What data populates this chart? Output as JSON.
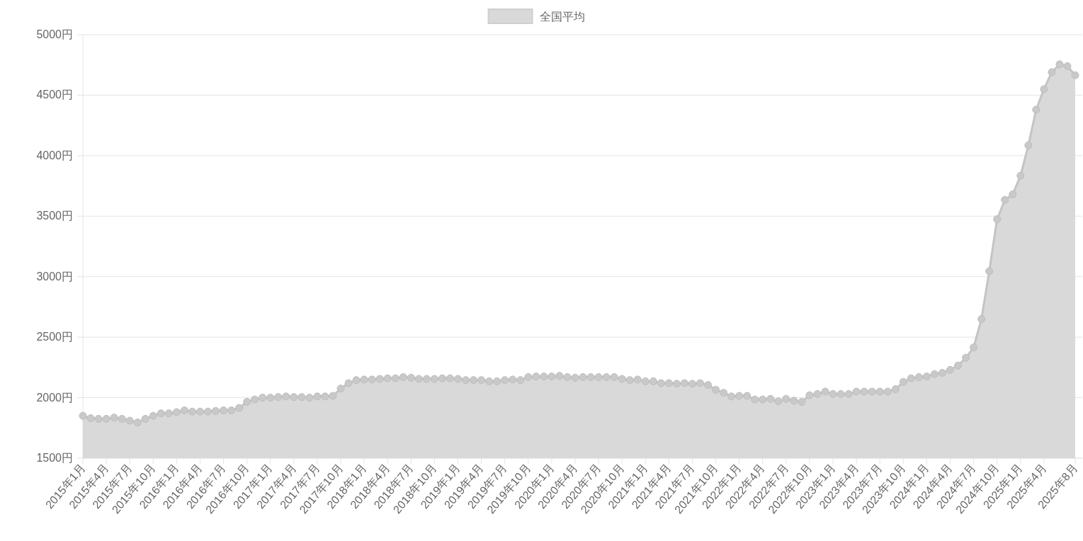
{
  "chart_data": {
    "type": "area",
    "legend": "top",
    "grid": "y",
    "marker": "circle",
    "categories": [
      "2015年1月",
      null,
      null,
      "2015年4月",
      null,
      null,
      "2015年7月",
      null,
      null,
      "2015年10月",
      null,
      null,
      "2016年1月",
      null,
      null,
      "2016年4月",
      null,
      null,
      "2016年7月",
      null,
      null,
      "2016年10月",
      null,
      null,
      "2017年1月",
      null,
      null,
      "2017年4月",
      null,
      null,
      "2017年7月",
      null,
      null,
      "2017年10月",
      null,
      null,
      "2018年1月",
      null,
      null,
      "2018年4月",
      null,
      null,
      "2018年7月",
      null,
      null,
      "2018年10月",
      null,
      null,
      "2019年1月",
      null,
      null,
      "2019年4月",
      null,
      null,
      "2019年7月",
      null,
      null,
      "2019年10月",
      null,
      null,
      "2020年1月",
      null,
      null,
      "2020年4月",
      null,
      null,
      "2020年7月",
      null,
      null,
      "2020年10月",
      null,
      null,
      "2021年1月",
      null,
      null,
      "2021年4月",
      null,
      null,
      "2021年7月",
      null,
      null,
      "2021年10月",
      null,
      null,
      "2022年1月",
      null,
      null,
      "2022年4月",
      null,
      null,
      "2022年7月",
      null,
      null,
      "2022年10月",
      null,
      null,
      "2023年1月",
      null,
      null,
      "2023年4月",
      null,
      null,
      "2023年7月",
      null,
      null,
      "2023年10月",
      null,
      null,
      "2024年1月",
      null,
      null,
      "2024年4月",
      null,
      null,
      "2024年7月",
      null,
      null,
      "2024年10月",
      null,
      null,
      "2025年1月",
      null,
      null,
      "2025年4月",
      null,
      null,
      null,
      "2025年8月"
    ],
    "ylim": [
      1500,
      5000
    ],
    "yticks": [
      {
        "value": 1500,
        "label": "1500円"
      },
      {
        "value": 2000,
        "label": "2000円"
      },
      {
        "value": 2500,
        "label": "2500円"
      },
      {
        "value": 3000,
        "label": "3000円"
      },
      {
        "value": 3500,
        "label": "3500円"
      },
      {
        "value": 4000,
        "label": "4000円"
      },
      {
        "value": 4500,
        "label": "4500円"
      },
      {
        "value": 5000,
        "label": "5000円"
      }
    ],
    "series": [
      {
        "name": "全国平均",
        "color": "#d9d9d9",
        "values": [
          1850,
          1830,
          1825,
          1825,
          1835,
          1825,
          1810,
          1795,
          1825,
          1850,
          1870,
          1870,
          1880,
          1895,
          1885,
          1885,
          1885,
          1890,
          1895,
          1895,
          1915,
          1965,
          1985,
          2000,
          2000,
          2005,
          2010,
          2005,
          2005,
          2000,
          2010,
          2010,
          2015,
          2075,
          2120,
          2145,
          2150,
          2150,
          2155,
          2160,
          2160,
          2170,
          2165,
          2155,
          2155,
          2155,
          2160,
          2160,
          2155,
          2145,
          2145,
          2145,
          2135,
          2135,
          2145,
          2150,
          2145,
          2170,
          2175,
          2175,
          2175,
          2180,
          2170,
          2165,
          2170,
          2170,
          2170,
          2170,
          2170,
          2155,
          2145,
          2150,
          2135,
          2135,
          2120,
          2120,
          2115,
          2120,
          2115,
          2120,
          2105,
          2065,
          2040,
          2010,
          2015,
          2015,
          1985,
          1985,
          1990,
          1970,
          1990,
          1975,
          1965,
          2020,
          2030,
          2050,
          2030,
          2030,
          2030,
          2050,
          2050,
          2050,
          2050,
          2050,
          2070,
          2130,
          2160,
          2170,
          2175,
          2195,
          2205,
          2230,
          2265,
          2330,
          2415,
          2650,
          3045,
          3475,
          3635,
          3680,
          3835,
          4085,
          4380,
          4550,
          4690,
          4755,
          4740,
          4665
        ]
      }
    ]
  }
}
